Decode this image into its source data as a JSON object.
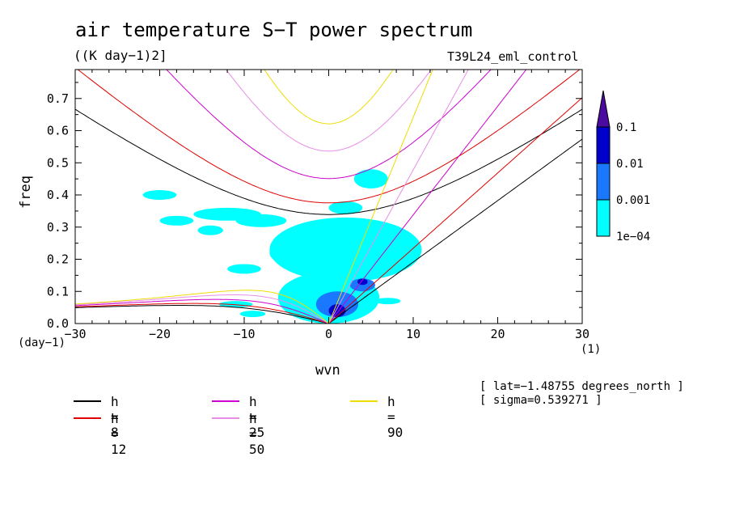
{
  "title": "air temperature S−T power spectrum",
  "units": "((K day−1)2]",
  "experiment": "T39L24_eml_control",
  "info": [
    "[ lat=−1.48755 degrees_north ]",
    "[ sigma=0.539271 ]"
  ],
  "chart_data": {
    "type": "heatmap",
    "title": "air temperature S−T power spectrum",
    "xlabel": "wvn",
    "ylabel": "freq",
    "x_unit": "(1)",
    "y_unit": "(day−1)",
    "xlim": [
      -30,
      30
    ],
    "ylim": [
      0,
      0.79
    ],
    "x_ticks": [
      -30,
      -20,
      -10,
      0,
      10,
      20,
      30
    ],
    "x_tick_labels": [
      "−30",
      "−20",
      "−10",
      "0",
      "10",
      "20",
      "30"
    ],
    "y_ticks": [
      0,
      0.1,
      0.2,
      0.3,
      0.4,
      0.5,
      0.6,
      0.7
    ],
    "y_tick_labels": [
      "0.0",
      "0.1",
      "0.2",
      "0.3",
      "0.4",
      "0.5",
      "0.6",
      "0.7"
    ],
    "colorbar": {
      "levels": [
        "1e−04",
        "0.001",
        "0.01",
        "0.1"
      ],
      "colors": [
        "#00ffff",
        "#1a78ff",
        "#0000cc",
        "#4b0aa0"
      ]
    },
    "power_regions": [
      {
        "level": 0,
        "x": 0,
        "y": 0.08,
        "rx": 6,
        "ry": 0.08
      },
      {
        "level": 0,
        "x": 2,
        "y": 0.23,
        "rx": 9,
        "ry": 0.1
      },
      {
        "level": 0,
        "x": -8,
        "y": 0.32,
        "rx": 3,
        "ry": 0.02
      },
      {
        "level": 0,
        "x": -12,
        "y": 0.34,
        "rx": 4,
        "ry": 0.02
      },
      {
        "level": 0,
        "x": -18,
        "y": 0.32,
        "rx": 2,
        "ry": 0.015
      },
      {
        "level": 0,
        "x": -20,
        "y": 0.4,
        "rx": 2,
        "ry": 0.015
      },
      {
        "level": 0,
        "x": -14,
        "y": 0.29,
        "rx": 1.5,
        "ry": 0.015
      },
      {
        "level": 0,
        "x": -11,
        "y": 0.06,
        "rx": 2,
        "ry": 0.01
      },
      {
        "level": 0,
        "x": -9,
        "y": 0.03,
        "rx": 1.5,
        "ry": 0.01
      },
      {
        "level": 0,
        "x": 5,
        "y": 0.45,
        "rx": 2,
        "ry": 0.03
      },
      {
        "level": 0,
        "x": 2,
        "y": 0.36,
        "rx": 2,
        "ry": 0.02
      },
      {
        "level": 0,
        "x": -4,
        "y": 0.22,
        "rx": 3,
        "ry": 0.04
      },
      {
        "level": 0,
        "x": -10,
        "y": 0.17,
        "rx": 2,
        "ry": 0.015
      },
      {
        "level": 0,
        "x": 7,
        "y": 0.07,
        "rx": 1.5,
        "ry": 0.01
      },
      {
        "level": 1,
        "x": 1,
        "y": 0.06,
        "rx": 2.5,
        "ry": 0.04
      },
      {
        "level": 1,
        "x": 4,
        "y": 0.12,
        "rx": 1.5,
        "ry": 0.02
      },
      {
        "level": 2,
        "x": 1,
        "y": 0.04,
        "rx": 1,
        "ry": 0.02
      },
      {
        "level": 2,
        "x": 4,
        "y": 0.13,
        "rx": 0.6,
        "ry": 0.01
      }
    ],
    "legend_placement": "bottom",
    "series": [
      {
        "name": "h =  8",
        "h": 8,
        "color": "#000000"
      },
      {
        "name": "h = 12",
        "h": 12,
        "color": "#e00000"
      },
      {
        "name": "h = 25",
        "h": 25,
        "color": "#cc00cc"
      },
      {
        "name": "h = 50",
        "h": 50,
        "color": "#e88ee8"
      },
      {
        "name": "h = 90",
        "h": 90,
        "color": "#eedd00"
      }
    ]
  }
}
